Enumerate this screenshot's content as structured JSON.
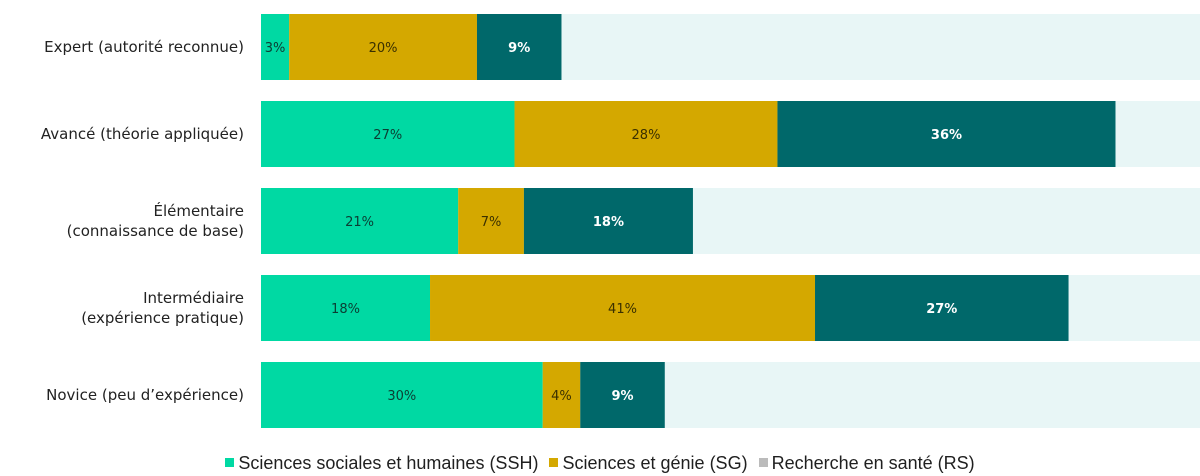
{
  "chart_data": {
    "type": "bar",
    "orientation": "horizontal",
    "stacked": true,
    "title": "",
    "xlabel": "",
    "ylabel": "",
    "xlim": [
      0,
      100
    ],
    "grid": false,
    "categories": [
      [
        "Expert (autorité reconnue)"
      ],
      [
        "Avancé (théorie appliquée)"
      ],
      [
        "Élémentaire",
        "(connaissance de base)"
      ],
      [
        "Intermédiaire",
        "(expérience pratique)"
      ],
      [
        "Novice (peu d’expérience)"
      ]
    ],
    "series": [
      {
        "name": "Sciences sociales et humaines (SSH)",
        "color": "#00D9A3",
        "values": [
          3,
          27,
          21,
          18,
          30
        ],
        "labels": [
          "3%",
          "27%",
          "21%",
          "18%",
          "30%"
        ]
      },
      {
        "name": "Sciences et génie (SG)",
        "color": "#D4A800",
        "values": [
          20,
          28,
          7,
          41,
          4
        ],
        "labels": [
          "20%",
          "28%",
          "7%",
          "41%",
          "4%"
        ]
      },
      {
        "name": "Recherche en santé (RS)",
        "color": "#00686A",
        "values": [
          9,
          36,
          18,
          27,
          9
        ],
        "labels": [
          "9%",
          "36%",
          "18%",
          "27%",
          "9%"
        ]
      }
    ],
    "track_color": "#E8F6F6",
    "legend_swatch_color_rs": "#BBBBBB",
    "legend_position": "bottom"
  }
}
